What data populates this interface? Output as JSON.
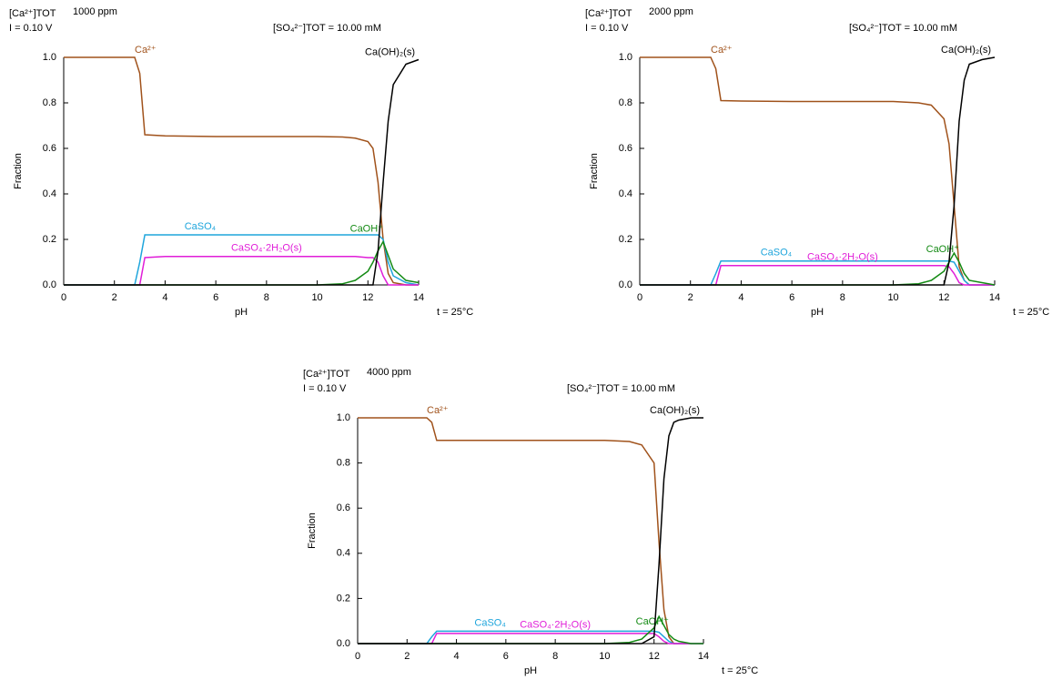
{
  "chart_data": [
    {
      "type": "line",
      "title": "1000 ppm",
      "conc_label": "[Ca²⁺]TOT",
      "ionic": "I = 0.10 V",
      "sulfate": "[SO₄²⁻]TOT = 10.00 mM",
      "temp": "t = 25°C",
      "xlabel": "pH",
      "ylabel": "Fraction",
      "x": [
        0,
        2.8,
        3.0,
        3.2,
        4,
        6,
        8,
        10,
        11,
        11.5,
        12,
        12.2,
        12.4,
        12.6,
        12.8,
        13,
        13.5,
        14
      ],
      "series": [
        {
          "name": "Ca²⁺",
          "color": "#a0521b",
          "values": [
            1,
            1,
            0.93,
            0.66,
            0.655,
            0.652,
            0.652,
            0.652,
            0.65,
            0.645,
            0.63,
            0.6,
            0.45,
            0.2,
            0.05,
            0.01,
            0,
            0
          ]
        },
        {
          "name": "CaSO₄",
          "color": "#1ea5dc",
          "values": [
            0,
            0,
            0.1,
            0.22,
            0.22,
            0.22,
            0.22,
            0.22,
            0.22,
            0.22,
            0.22,
            0.22,
            0.22,
            0.2,
            0.1,
            0.04,
            0.01,
            0
          ]
        },
        {
          "name": "CaSO₄·2H₂O(s)",
          "color": "#e01ed8",
          "values": [
            0,
            0,
            0,
            0.12,
            0.125,
            0.125,
            0.125,
            0.125,
            0.125,
            0.125,
            0.12,
            0.12,
            0.1,
            0.04,
            0,
            0,
            0,
            0
          ]
        },
        {
          "name": "CaOH⁺",
          "color": "#138a13",
          "values": [
            0,
            0,
            0,
            0,
            0,
            0,
            0,
            0,
            0.005,
            0.02,
            0.06,
            0.1,
            0.15,
            0.19,
            0.13,
            0.07,
            0.02,
            0.01
          ]
        },
        {
          "name": "Ca(OH)₂(s)",
          "color": "#000000",
          "values": [
            0,
            0,
            0,
            0,
            0,
            0,
            0,
            0,
            0,
            0,
            0,
            0,
            0.15,
            0.45,
            0.72,
            0.88,
            0.97,
            0.99
          ]
        }
      ],
      "xlim": [
        0,
        14
      ],
      "ylim": [
        0,
        1
      ],
      "xticks": [
        0,
        2,
        4,
        6,
        8,
        10,
        12,
        14
      ],
      "yticks": [
        {
          "value": 0,
          "label": "0.0"
        },
        {
          "value": 0.2,
          "label": "0.2"
        },
        {
          "value": 0.4,
          "label": "0.4"
        },
        {
          "value": 0.6,
          "label": "0.6"
        },
        {
          "value": 0.8,
          "label": "0.8"
        },
        {
          "value": 1,
          "label": "1.0"
        }
      ]
    },
    {
      "type": "line",
      "title": "2000 ppm",
      "conc_label": "[Ca²⁺]TOT",
      "ionic": "I = 0.10 V",
      "sulfate": "[SO₄²⁻]TOT = 10.00 mM",
      "temp": "t = 25°C",
      "xlabel": "pH",
      "ylabel": "Fraction",
      "x": [
        0,
        2.8,
        3.0,
        3.2,
        4,
        6,
        8,
        10,
        11,
        11.5,
        12,
        12.2,
        12.4,
        12.6,
        12.8,
        13,
        13.5,
        14
      ],
      "series": [
        {
          "name": "Ca²⁺",
          "color": "#a0521b",
          "values": [
            1,
            1,
            0.95,
            0.81,
            0.808,
            0.806,
            0.806,
            0.806,
            0.8,
            0.79,
            0.73,
            0.62,
            0.35,
            0.08,
            0.02,
            0,
            0,
            0
          ]
        },
        {
          "name": "CaSO₄",
          "color": "#1ea5dc",
          "values": [
            0,
            0,
            0.05,
            0.105,
            0.105,
            0.105,
            0.105,
            0.105,
            0.105,
            0.105,
            0.105,
            0.105,
            0.1,
            0.06,
            0.02,
            0,
            0,
            0
          ]
        },
        {
          "name": "CaSO₄·2H₂O(s)",
          "color": "#e01ed8",
          "values": [
            0,
            0,
            0,
            0.085,
            0.085,
            0.085,
            0.085,
            0.085,
            0.085,
            0.085,
            0.085,
            0.08,
            0.05,
            0.01,
            0,
            0,
            0,
            0
          ]
        },
        {
          "name": "CaOH⁺",
          "color": "#138a13",
          "values": [
            0,
            0,
            0,
            0,
            0,
            0,
            0,
            0,
            0.005,
            0.02,
            0.06,
            0.1,
            0.14,
            0.1,
            0.05,
            0.02,
            0.01,
            0
          ]
        },
        {
          "name": "Ca(OH)₂(s)",
          "color": "#000000",
          "values": [
            0,
            0,
            0,
            0,
            0,
            0,
            0,
            0,
            0,
            0,
            0,
            0.1,
            0.35,
            0.72,
            0.9,
            0.97,
            0.99,
            1
          ]
        }
      ],
      "xlim": [
        0,
        14
      ],
      "ylim": [
        0,
        1
      ],
      "xticks": [
        0,
        2,
        4,
        6,
        8,
        10,
        12,
        14
      ],
      "yticks": [
        {
          "value": 0,
          "label": "0.0"
        },
        {
          "value": 0.2,
          "label": "0.2"
        },
        {
          "value": 0.4,
          "label": "0.4"
        },
        {
          "value": 0.6,
          "label": "0.6"
        },
        {
          "value": 0.8,
          "label": "0.8"
        },
        {
          "value": 1,
          "label": "1.0"
        }
      ]
    },
    {
      "type": "line",
      "title": "4000 ppm",
      "conc_label": "[Ca²⁺]TOT",
      "ionic": "I = 0.10 V",
      "sulfate": "[SO₄²⁻]TOT = 10.00 mM",
      "temp": "t = 25°C",
      "xlabel": "pH",
      "ylabel": "Fraction",
      "x": [
        0,
        2.8,
        3.0,
        3.2,
        4,
        6,
        8,
        10,
        11,
        11.5,
        12,
        12.2,
        12.4,
        12.6,
        12.8,
        13,
        13.5,
        14
      ],
      "series": [
        {
          "name": "Ca²⁺",
          "color": "#a0521b",
          "values": [
            1,
            1,
            0.98,
            0.9,
            0.9,
            0.9,
            0.9,
            0.9,
            0.895,
            0.88,
            0.8,
            0.45,
            0.15,
            0.03,
            0,
            0,
            0,
            0
          ]
        },
        {
          "name": "CaSO₄",
          "color": "#1ea5dc",
          "values": [
            0,
            0,
            0.03,
            0.055,
            0.055,
            0.055,
            0.055,
            0.055,
            0.055,
            0.055,
            0.055,
            0.05,
            0.03,
            0.01,
            0,
            0,
            0,
            0
          ]
        },
        {
          "name": "CaSO₄·2H₂O(s)",
          "color": "#e01ed8",
          "values": [
            0,
            0,
            0,
            0.045,
            0.045,
            0.045,
            0.045,
            0.045,
            0.045,
            0.045,
            0.045,
            0.03,
            0.01,
            0,
            0,
            0,
            0,
            0
          ]
        },
        {
          "name": "CaOH⁺",
          "color": "#138a13",
          "values": [
            0,
            0,
            0,
            0,
            0,
            0,
            0,
            0,
            0.005,
            0.02,
            0.07,
            0.12,
            0.08,
            0.04,
            0.02,
            0.01,
            0,
            0
          ]
        },
        {
          "name": "Ca(OH)₂(s)",
          "color": "#000000",
          "values": [
            0,
            0,
            0,
            0,
            0,
            0,
            0,
            0,
            0,
            0,
            0.03,
            0.35,
            0.73,
            0.92,
            0.98,
            0.99,
            1,
            1
          ]
        }
      ],
      "xlim": [
        0,
        14
      ],
      "ylim": [
        0,
        1
      ],
      "xticks": [
        0,
        2,
        4,
        6,
        8,
        10,
        12,
        14
      ],
      "yticks": [
        {
          "value": 0,
          "label": "0.0"
        },
        {
          "value": 0.2,
          "label": "0.2"
        },
        {
          "value": 0.4,
          "label": "0.4"
        },
        {
          "value": 0.6,
          "label": "0.6"
        },
        {
          "value": 0.8,
          "label": "0.8"
        },
        {
          "value": 1,
          "label": "1.0"
        }
      ]
    }
  ]
}
